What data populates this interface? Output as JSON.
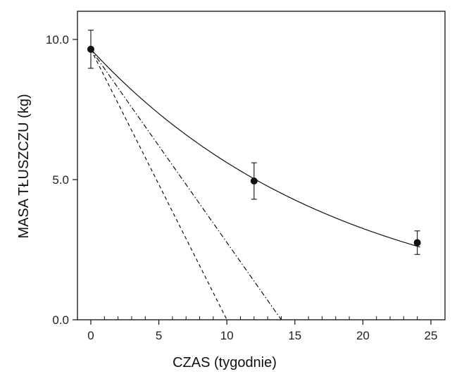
{
  "chart_data": {
    "type": "scatter",
    "xlabel": "CZAS (tygodnie)",
    "ylabel": "MASA TŁUSZCZU (kg)",
    "xlim": [
      -1,
      26
    ],
    "ylim": [
      0,
      11
    ],
    "x_ticks": [
      0,
      5,
      10,
      15,
      20,
      25
    ],
    "x_tick_labels": [
      "0",
      "5",
      "10",
      "15",
      "20",
      "25"
    ],
    "y_ticks": [
      0,
      5,
      10
    ],
    "y_tick_labels": [
      "0.0",
      "5.0",
      "10.0"
    ],
    "x_minor_step": 1,
    "grid": false,
    "points": [
      {
        "x": 0,
        "y": 9.65,
        "err": 0.68
      },
      {
        "x": 12,
        "y": 4.95,
        "err": 0.65
      },
      {
        "x": 24,
        "y": 2.75,
        "err": 0.42
      }
    ],
    "curves": [
      {
        "style": "solid",
        "kind": "exponential",
        "y0": 9.65,
        "rate": 0.0543,
        "x_range": [
          0,
          24.2
        ]
      },
      {
        "style": "dashed",
        "kind": "linear",
        "from": [
          0,
          9.65
        ],
        "to": [
          10,
          0
        ]
      },
      {
        "style": "dashdot",
        "kind": "linear",
        "from": [
          0,
          9.65
        ],
        "to": [
          14,
          0
        ]
      }
    ]
  }
}
